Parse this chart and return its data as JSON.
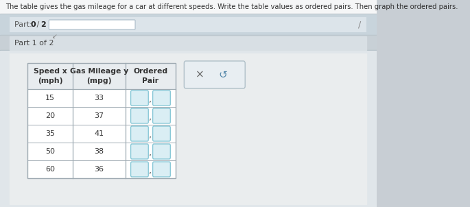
{
  "title_text": "The table gives the gas mileage for a car at different speeds. Write the table values as ordered pairs. Then graph the ordered pairs.",
  "part_progress": "Part: 0 / 2",
  "part_label": "Part 1 of 2",
  "col_headers": [
    "Speed x\n(mph)",
    "Gas Mileage y\n(mpg)",
    "Ordered\nPair"
  ],
  "rows": [
    [
      15,
      33
    ],
    [
      20,
      37
    ],
    [
      35,
      41
    ],
    [
      50,
      38
    ],
    [
      60,
      36
    ]
  ],
  "outer_bg": "#c8ced4",
  "white_bg": "#f0f2f4",
  "progress_row_bg": "#c8d4dc",
  "part_label_bg": "#d8dee4",
  "content_bg": "#e8ecee",
  "table_white": "#ffffff",
  "table_header_bg": "#f0f2f4",
  "table_border": "#9eaab2",
  "cell_bg": "#daeef4",
  "cell_border": "#80c4d4",
  "progress_bar_bg": "#c8d8e0",
  "progress_bar_fill": "#b0c8d8",
  "btn_bg": "#e8eef2",
  "btn_border": "#aabbc4",
  "title_color": "#333333",
  "text_color": "#444444"
}
